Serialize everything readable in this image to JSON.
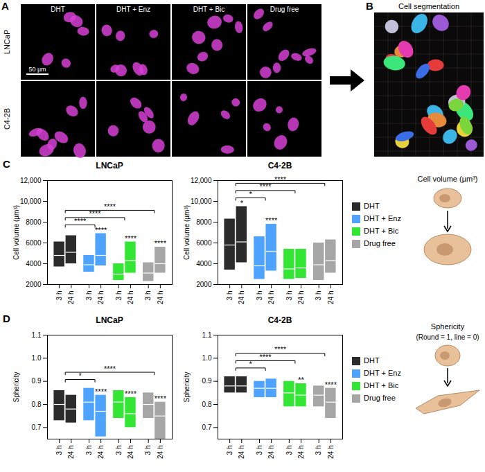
{
  "panel_a": {
    "label": "A",
    "columns": [
      "DHT",
      "DHT + Enz",
      "DHT + Bic",
      "Drug free"
    ],
    "rows": [
      "LNCaP",
      "C4-2B"
    ],
    "scale_bar": "50 µm"
  },
  "panel_b": {
    "label": "B",
    "title": "Cell segmentation"
  },
  "cartoons": {
    "volume": {
      "title": "Cell volume (µm³)"
    },
    "sphericity": {
      "title": "Sphericity",
      "subtitle": "(Round = 1, line = 0)"
    }
  },
  "chart_data": [
    {
      "type": "floating_bar",
      "panel": "C",
      "title": "LNCaP",
      "y_label": "Cell volume (µm³)",
      "x": [
        "3 h",
        "24 h"
      ],
      "categories": [
        "DHT",
        "DHT + Enz",
        "DHT + Bic",
        "Drug free"
      ],
      "ylim": [
        2000,
        12000
      ],
      "yticks": [
        2000,
        4000,
        6000,
        8000,
        {
          "value": 10000,
          "label": "10,000"
        },
        {
          "value": 12000,
          "label": "12,000"
        }
      ],
      "series": [
        {
          "name": "DHT",
          "color": "#2b2b2b",
          "low": [
            3700,
            4000
          ],
          "median": [
            4800,
            5100
          ],
          "high": [
            6100,
            6700
          ]
        },
        {
          "name": "DHT + Enz",
          "color": "#4da3ff",
          "low": [
            3200,
            3800
          ],
          "median": [
            3900,
            4800
          ],
          "high": [
            4800,
            6900
          ]
        },
        {
          "name": "DHT + Bic",
          "color": "#33e633",
          "low": [
            2400,
            3100
          ],
          "median": [
            3000,
            4300
          ],
          "high": [
            4000,
            6100
          ]
        },
        {
          "name": "Drug free",
          "color": "#a6a6a6",
          "low": [
            2300,
            3100
          ],
          "median": [
            3100,
            4000
          ],
          "high": [
            4100,
            5600
          ]
        }
      ],
      "comparisons": [
        {
          "from": "DHT",
          "to": "DHT + Enz",
          "label": "****"
        },
        {
          "from": "DHT",
          "to": "DHT + Bic",
          "label": "****"
        },
        {
          "from": "DHT",
          "to": "Drug free",
          "label": "****"
        }
      ],
      "bar_marks": [
        {
          "group": "DHT + Enz",
          "time": "24 h",
          "label": "****"
        },
        {
          "group": "DHT + Bic",
          "time": "24 h",
          "label": "****"
        },
        {
          "group": "Drug free",
          "time": "24 h",
          "label": "****"
        }
      ]
    },
    {
      "type": "floating_bar",
      "title": "C4-2B",
      "y_label": "Cell volume (µm³)",
      "x": [
        "3 h",
        "24 h"
      ],
      "categories": [
        "DHT",
        "DHT + Enz",
        "DHT + Bic",
        "Drug free"
      ],
      "ylim": [
        2000,
        12000
      ],
      "yticks": [
        2000,
        4000,
        6000,
        8000,
        {
          "value": 10000,
          "label": "10,000"
        },
        {
          "value": 12000,
          "label": "12,000"
        }
      ],
      "series": [
        {
          "name": "DHT",
          "color": "#2b2b2b",
          "low": [
            3400,
            4100
          ],
          "median": [
            5800,
            6100
          ],
          "high": [
            8300,
            9500
          ]
        },
        {
          "name": "DHT + Enz",
          "color": "#4da3ff",
          "low": [
            2500,
            3300
          ],
          "median": [
            3800,
            5200
          ],
          "high": [
            6600,
            7800
          ]
        },
        {
          "name": "DHT + Bic",
          "color": "#33e633",
          "low": [
            2500,
            2600
          ],
          "median": [
            3500,
            3600
          ],
          "high": [
            5400,
            5400
          ]
        },
        {
          "name": "Drug free",
          "color": "#a6a6a6",
          "low": [
            2400,
            3100
          ],
          "median": [
            3900,
            4300
          ],
          "high": [
            6000,
            6300
          ]
        }
      ],
      "comparisons": [
        {
          "from": "DHT",
          "to": "DHT + Enz",
          "label": "*"
        },
        {
          "from": "DHT",
          "to": "DHT + Bic",
          "label": "****"
        },
        {
          "from": "DHT",
          "to": "Drug free",
          "label": "****"
        }
      ],
      "bar_marks": [
        {
          "group": "DHT",
          "time": "24 h",
          "label": "*"
        },
        {
          "group": "DHT + Enz",
          "time": "24 h",
          "label": "****"
        }
      ]
    },
    {
      "type": "floating_bar",
      "panel": "D",
      "title": "LNCaP",
      "y_label": "Sphericity",
      "x": [
        "3 h",
        "24 h"
      ],
      "categories": [
        "DHT",
        "DHT + Enz",
        "DHT + Bic",
        "Drug free"
      ],
      "ylim": [
        0.65,
        1.1
      ],
      "yticks": [
        0.7,
        0.8,
        0.9,
        {
          "value": 1,
          "label": "1.0"
        },
        1.1
      ],
      "series": [
        {
          "name": "DHT",
          "color": "#2b2b2b",
          "low": [
            0.73,
            0.72
          ],
          "median": [
            0.8,
            0.78
          ],
          "high": [
            0.86,
            0.84
          ]
        },
        {
          "name": "DHT + Enz",
          "color": "#4da3ff",
          "low": [
            0.73,
            0.66
          ],
          "median": [
            0.81,
            0.77
          ],
          "high": [
            0.87,
            0.84
          ]
        },
        {
          "name": "DHT + Bic",
          "color": "#33e633",
          "low": [
            0.74,
            0.7
          ],
          "median": [
            0.81,
            0.76
          ],
          "high": [
            0.86,
            0.83
          ]
        },
        {
          "name": "Drug free",
          "color": "#a6a6a6",
          "low": [
            0.74,
            0.65
          ],
          "median": [
            0.8,
            0.75
          ],
          "high": [
            0.85,
            0.81
          ]
        }
      ],
      "comparisons": [
        {
          "from": "DHT",
          "to": "DHT + Enz",
          "label": "*"
        },
        {
          "from": "DHT",
          "to": "Drug free",
          "label": "****"
        }
      ],
      "bar_marks": [
        {
          "group": "DHT + Enz",
          "time": "24 h",
          "label": "****"
        },
        {
          "group": "DHT + Bic",
          "time": "24 h",
          "label": "****"
        },
        {
          "group": "Drug free",
          "time": "24 h",
          "label": "****"
        }
      ]
    },
    {
      "type": "floating_bar",
      "title": "C4-2B",
      "y_label": "Sphericity",
      "x": [
        "3 h",
        "24 h"
      ],
      "categories": [
        "DHT",
        "DHT + Enz",
        "DHT + Bic",
        "Drug free"
      ],
      "ylim": [
        0.65,
        1.1
      ],
      "yticks": [
        0.7,
        0.8,
        0.9,
        {
          "value": 1,
          "label": "1.0"
        },
        1.1
      ],
      "series": [
        {
          "name": "DHT",
          "color": "#2b2b2b",
          "low": [
            0.85,
            0.85
          ],
          "median": [
            0.88,
            0.88
          ],
          "high": [
            0.92,
            0.92
          ]
        },
        {
          "name": "DHT + Enz",
          "color": "#4da3ff",
          "low": [
            0.83,
            0.83
          ],
          "median": [
            0.87,
            0.87
          ],
          "high": [
            0.9,
            0.91
          ]
        },
        {
          "name": "DHT + Bic",
          "color": "#33e633",
          "low": [
            0.79,
            0.79
          ],
          "median": [
            0.85,
            0.84
          ],
          "high": [
            0.9,
            0.89
          ]
        },
        {
          "name": "Drug free",
          "color": "#a6a6a6",
          "low": [
            0.79,
            0.74
          ],
          "median": [
            0.84,
            0.81
          ],
          "high": [
            0.88,
            0.87
          ]
        }
      ],
      "comparisons": [
        {
          "from": "DHT",
          "to": "DHT + Enz",
          "label": "*"
        },
        {
          "from": "DHT",
          "to": "DHT + Bic",
          "label": "****"
        },
        {
          "from": "DHT",
          "to": "Drug free",
          "label": "****"
        }
      ],
      "bar_marks": [
        {
          "group": "DHT + Bic",
          "time": "24 h",
          "label": "**"
        },
        {
          "group": "Drug free",
          "time": "24 h",
          "label": "****"
        }
      ]
    }
  ]
}
